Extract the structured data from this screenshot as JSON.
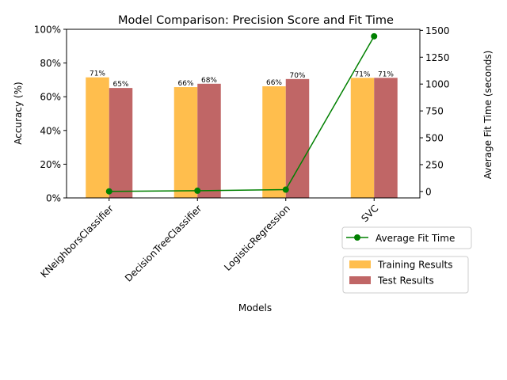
{
  "chart_data": {
    "type": "bar",
    "title": "Model Comparison: Precision Score and Fit Time",
    "xlabel": "Models",
    "ylabel": "Accuracy (%)",
    "y2label": "Average Fit Time (seconds)",
    "categories": [
      "KNeighborsClassifier",
      "DecisionTreeClassifier",
      "LogisticRegression",
      "SVC"
    ],
    "ylim": [
      0,
      1
    ],
    "y_ticks": [
      "0%",
      "20%",
      "40%",
      "60%",
      "80%",
      "100%"
    ],
    "y2lim": [
      -60,
      1510
    ],
    "y2_ticks": [
      "0",
      "250",
      "500",
      "750",
      "1000",
      "1250",
      "1500"
    ],
    "series": [
      {
        "name": "Training Results",
        "type": "bar",
        "axis": "left",
        "color": "#ffbe4d",
        "values": [
          0.715,
          0.657,
          0.662,
          0.712
        ],
        "labels": [
          "71%",
          "66%",
          "66%",
          "71%"
        ]
      },
      {
        "name": "Test Results",
        "type": "bar",
        "axis": "left",
        "color": "#c06666",
        "values": [
          0.652,
          0.677,
          0.705,
          0.712
        ],
        "labels": [
          "65%",
          "68%",
          "70%",
          "71%"
        ]
      },
      {
        "name": "Average Fit Time",
        "type": "line",
        "axis": "right",
        "color": "#008000",
        "values": [
          1,
          7,
          17,
          1445
        ]
      }
    ],
    "legend_line_placement": "right-below-axis",
    "legend_bars_placement": "right-below-axis",
    "grid": false
  }
}
